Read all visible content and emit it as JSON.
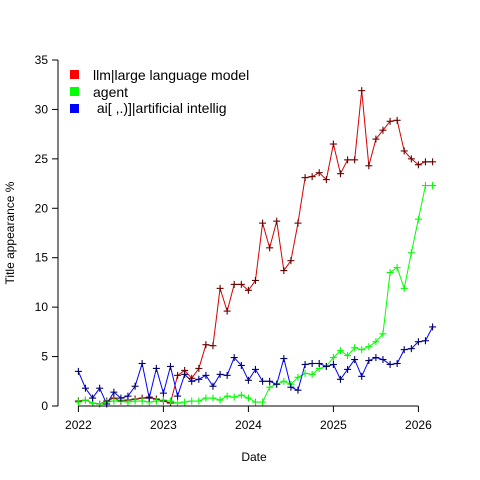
{
  "chart_data": {
    "type": "line",
    "xlabel": "Date",
    "ylabel": "Title appearance %",
    "ylim": [
      0,
      35
    ],
    "yticks": [
      0,
      5,
      10,
      15,
      20,
      25,
      30,
      35
    ],
    "xticks": [
      {
        "label": "2022",
        "value": 2022.0
      },
      {
        "label": "2023",
        "value": 2023.0
      },
      {
        "label": "2024",
        "value": 2024.0
      },
      {
        "label": "2025",
        "value": 2025.0
      },
      {
        "label": "2026",
        "value": 2026.0
      }
    ],
    "xlim": [
      2021.76,
      2026.36
    ],
    "legend_position": "top-left",
    "series": [
      {
        "name": "llm|large language model",
        "color": "#d60000",
        "marker_color": "#660000",
        "x": [
          2022.0,
          2022.083,
          2022.167,
          2022.25,
          2022.333,
          2022.417,
          2022.5,
          2022.583,
          2022.667,
          2022.75,
          2022.833,
          2022.917,
          2023.0,
          2023.083,
          2023.167,
          2023.25,
          2023.333,
          2023.417,
          2023.5,
          2023.583,
          2023.667,
          2023.75,
          2023.833,
          2023.917,
          2024.0,
          2024.083,
          2024.167,
          2024.25,
          2024.333,
          2024.417,
          2024.5,
          2024.583,
          2024.667,
          2024.75,
          2024.833,
          2024.917,
          2025.0,
          2025.083,
          2025.167,
          2025.25,
          2025.333,
          2025.417,
          2025.5,
          2025.583,
          2025.667,
          2025.75,
          2025.833,
          2025.917,
          2026.0,
          2026.083,
          2026.167
        ],
        "y": [
          0.5,
          0.6,
          0.3,
          0.2,
          0.5,
          0.8,
          0.5,
          0.6,
          0.7,
          0.8,
          0.9,
          0.7,
          0.5,
          0.3,
          3.1,
          3.6,
          2.8,
          3.8,
          6.2,
          6.1,
          11.9,
          9.6,
          12.3,
          12.3,
          11.7,
          12.7,
          18.5,
          16.0,
          18.7,
          13.7,
          14.7,
          18.5,
          23.1,
          23.2,
          23.6,
          22.9,
          26.5,
          23.5,
          24.9,
          24.9,
          31.9,
          24.3,
          27.0,
          27.9,
          28.8,
          28.9,
          25.8,
          25.0,
          24.4,
          24.7,
          24.7
        ]
      },
      {
        "name": "agent",
        "color": "#00ff00",
        "marker_color": "#00ff00",
        "x": [
          2022.0,
          2022.083,
          2022.167,
          2022.25,
          2022.333,
          2022.417,
          2022.5,
          2022.583,
          2022.667,
          2022.75,
          2022.833,
          2022.917,
          2023.0,
          2023.083,
          2023.167,
          2023.25,
          2023.333,
          2023.417,
          2023.5,
          2023.583,
          2023.667,
          2023.75,
          2023.833,
          2023.917,
          2024.0,
          2024.083,
          2024.167,
          2024.25,
          2024.333,
          2024.417,
          2024.5,
          2024.583,
          2024.667,
          2024.75,
          2024.833,
          2024.917,
          2025.0,
          2025.083,
          2025.167,
          2025.25,
          2025.333,
          2025.417,
          2025.5,
          2025.583,
          2025.667,
          2025.75,
          2025.833,
          2025.917,
          2026.0,
          2026.083,
          2026.167
        ],
        "y": [
          0.4,
          0.6,
          0.3,
          0.2,
          0.4,
          0.5,
          0.6,
          0.4,
          0.5,
          0.5,
          0.4,
          0.5,
          0.6,
          0.5,
          0.3,
          0.4,
          0.5,
          0.5,
          0.8,
          0.8,
          0.6,
          1.0,
          0.9,
          1.1,
          0.8,
          0.4,
          0.4,
          1.9,
          2.2,
          2.5,
          2.2,
          2.9,
          3.3,
          3.2,
          3.8,
          4.0,
          4.9,
          5.6,
          5.1,
          5.9,
          5.7,
          6.0,
          6.5,
          7.3,
          13.5,
          14.0,
          11.9,
          15.5,
          18.9,
          22.3,
          22.3
        ]
      },
      {
        "name": " ai[ ,.)]|artificial intellig",
        "color": "#0000ff",
        "marker_color": "#000066",
        "x": [
          2022.0,
          2022.083,
          2022.167,
          2022.25,
          2022.333,
          2022.417,
          2022.5,
          2022.583,
          2022.667,
          2022.75,
          2022.833,
          2022.917,
          2023.0,
          2023.083,
          2023.167,
          2023.25,
          2023.333,
          2023.417,
          2023.5,
          2023.583,
          2023.667,
          2023.75,
          2023.833,
          2023.917,
          2024.0,
          2024.083,
          2024.167,
          2024.25,
          2024.333,
          2024.417,
          2024.5,
          2024.583,
          2024.667,
          2024.75,
          2024.833,
          2024.917,
          2025.0,
          2025.083,
          2025.167,
          2025.25,
          2025.333,
          2025.417,
          2025.5,
          2025.583,
          2025.667,
          2025.75,
          2025.833,
          2025.917,
          2026.0,
          2026.083,
          2026.167
        ],
        "y": [
          3.5,
          1.8,
          0.8,
          1.8,
          0.2,
          1.4,
          0.8,
          1.0,
          2.0,
          4.3,
          0.8,
          3.8,
          1.3,
          4.0,
          1.0,
          3.2,
          2.5,
          2.7,
          3.1,
          2.0,
          3.2,
          3.1,
          4.9,
          4.1,
          2.6,
          3.7,
          2.5,
          2.5,
          2.2,
          4.8,
          1.9,
          1.6,
          4.2,
          4.3,
          4.3,
          4.0,
          4.2,
          2.7,
          3.7,
          4.7,
          3.0,
          4.6,
          4.9,
          4.7,
          4.2,
          4.3,
          5.7,
          5.8,
          6.5,
          6.6,
          8.0
        ]
      }
    ]
  }
}
